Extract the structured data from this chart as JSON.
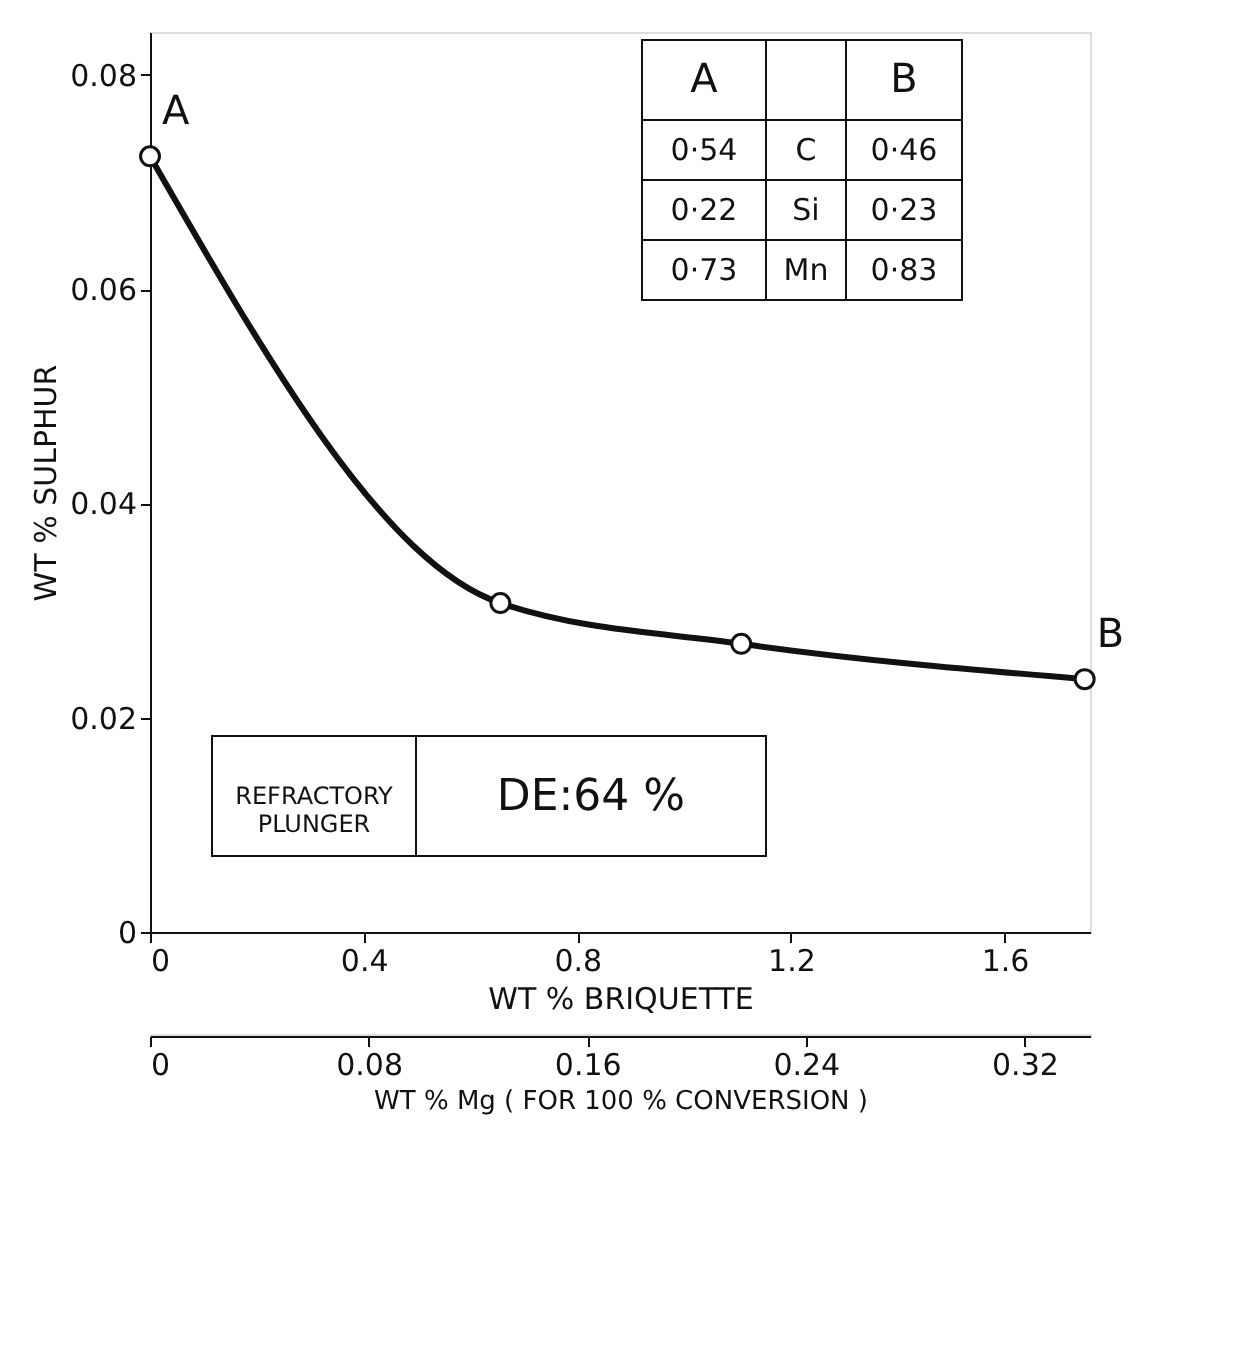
{
  "chart_data": {
    "type": "line",
    "xlabel": "WT % BRIQUETTE",
    "ylabel": "WT % SULPHUR",
    "x2label": "WT % Mg     ( FOR 100 % CONVERSION )",
    "x": [
      0,
      0.656,
      1.107,
      1.75
    ],
    "series": [
      {
        "color": "#111111",
        "values": [
          0.0724,
          0.0307,
          0.0269,
          0.0236
        ]
      }
    ],
    "xlim": [
      0,
      1.76
    ],
    "xticks": [
      0,
      0.4,
      0.8,
      1.2,
      1.6
    ],
    "ylim": [
      0,
      0.084
    ],
    "yticks": [
      0,
      0.02,
      0.04,
      0.06,
      0.08
    ],
    "x2lim": [
      0,
      0.344
    ],
    "x2ticks": [
      0,
      0.08,
      0.16,
      0.24,
      0.32
    ],
    "marker": "circle",
    "line_style": "solid",
    "grid": false,
    "annotations": [
      {
        "text": "A",
        "x": 0,
        "y": 0.0724
      },
      {
        "text": "B",
        "x": 1.75,
        "y": 0.0236
      },
      "A",
      "B",
      "0·54",
      "C",
      "0·46",
      "0·22",
      "Si",
      "0·23",
      "0·73",
      "Mn",
      "0·83",
      "REFRACTORY\nPLUNGER",
      "DE:64 %"
    ]
  }
}
